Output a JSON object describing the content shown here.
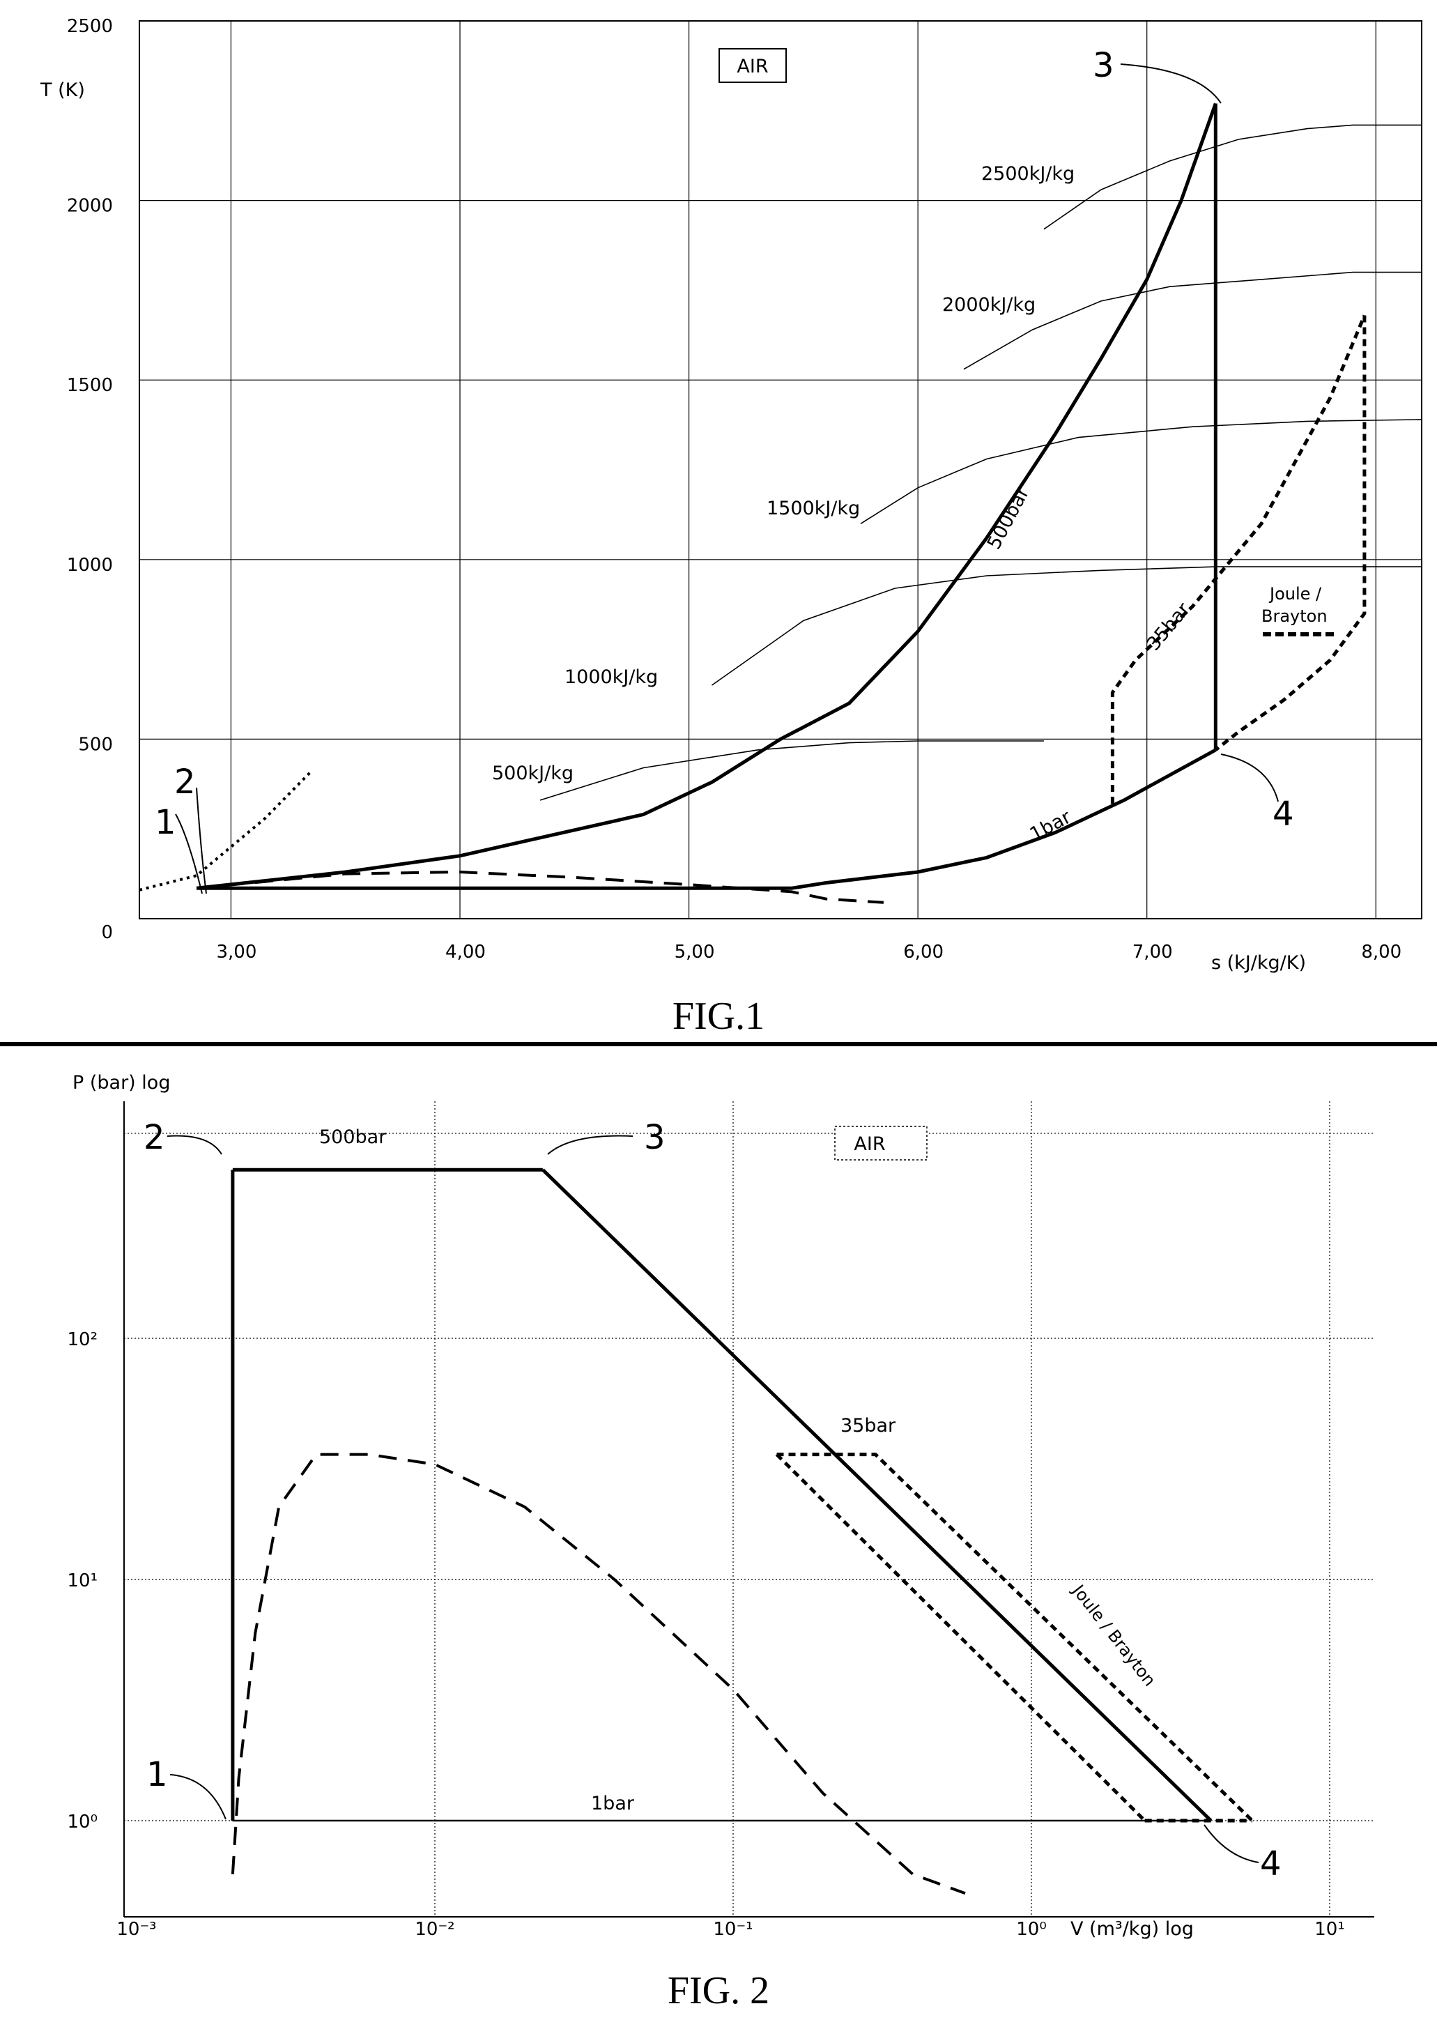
{
  "chart_data": [
    {
      "type": "line",
      "caption": "FIG.1",
      "xlabel": "s (kJ/kg/K)",
      "ylabel": "T (K)",
      "xlim": [
        2.6,
        8.2
      ],
      "ylim": [
        0,
        2500
      ],
      "xticks": [
        "3,00",
        "4,00",
        "5,00",
        "6,00",
        "7,00",
        "8,00"
      ],
      "yticks": [
        "0",
        "500",
        "1000",
        "1500",
        "2000",
        "2500"
      ],
      "grid": true,
      "box_label": "AIR",
      "series": [
        {
          "name": "500bar",
          "style": "solid-bold",
          "x": [
            2.85,
            3.5,
            4.0,
            4.8,
            5.1,
            5.4,
            5.7,
            6.0,
            6.3,
            6.6,
            6.8,
            7.0,
            7.15,
            7.3
          ],
          "y": [
            85,
            130,
            175,
            290,
            380,
            500,
            600,
            800,
            1060,
            1350,
            1560,
            1780,
            2000,
            2270
          ]
        },
        {
          "name": "1bar",
          "style": "solid-bold",
          "x": [
            2.85,
            5.45,
            5.6,
            6.0,
            6.3,
            6.6,
            6.9,
            7.1,
            7.3
          ],
          "y": [
            85,
            85,
            100,
            130,
            170,
            240,
            330,
            400,
            470
          ]
        },
        {
          "name": "",
          "style": "solid-bold",
          "x": [
            7.3,
            7.3
          ],
          "y": [
            2270,
            470
          ]
        },
        {
          "name": "",
          "style": "dashed",
          "x": [
            2.85,
            3.5,
            4.0,
            4.5,
            5.0,
            5.45,
            5.6,
            5.85
          ],
          "y": [
            85,
            125,
            130,
            115,
            95,
            75,
            55,
            45
          ]
        },
        {
          "name": "",
          "style": "dotted",
          "x": [
            2.6,
            2.85,
            3.0,
            3.15,
            3.35
          ],
          "y": [
            80,
            120,
            200,
            280,
            410
          ]
        },
        {
          "name": "35bar",
          "style": "short-dash",
          "x": [
            6.85,
            6.85,
            6.95,
            7.2,
            7.5,
            7.8,
            7.95
          ],
          "y": [
            320,
            630,
            720,
            870,
            1100,
            1450,
            1680
          ]
        },
        {
          "name": "",
          "style": "short-dash",
          "x": [
            7.95,
            7.95,
            7.8,
            7.6,
            7.4,
            7.3
          ],
          "y": [
            1680,
            850,
            720,
            610,
            520,
            470
          ]
        }
      ],
      "isoenergy_lines": [
        {
          "label": "500kJ/kg",
          "x": [
            4.35,
            4.8,
            5.3,
            5.7,
            6.0,
            6.55
          ],
          "y": [
            330,
            420,
            470,
            490,
            495,
            495
          ]
        },
        {
          "label": "1000kJ/kg",
          "x": [
            5.1,
            5.5,
            5.9,
            6.3,
            6.8,
            7.3,
            8.2
          ],
          "y": [
            650,
            830,
            920,
            955,
            970,
            980,
            980
          ]
        },
        {
          "label": "1500kJ/kg",
          "x": [
            5.75,
            6.0,
            6.3,
            6.7,
            7.2,
            7.7,
            8.2
          ],
          "y": [
            1100,
            1200,
            1280,
            1340,
            1370,
            1385,
            1390
          ]
        },
        {
          "label": "2000kJ/kg",
          "x": [
            6.2,
            6.5,
            6.8,
            7.1,
            7.5,
            7.9,
            8.2
          ],
          "y": [
            1530,
            1640,
            1720,
            1760,
            1780,
            1800,
            1800
          ]
        },
        {
          "label": "2500kJ/kg",
          "x": [
            6.55,
            6.8,
            7.1,
            7.4,
            7.7,
            7.9,
            8.2
          ],
          "y": [
            1920,
            2030,
            2110,
            2170,
            2200,
            2210,
            2210
          ]
        }
      ],
      "annotations": [
        "500bar",
        "35bar",
        "1bar",
        "Joule /",
        "Brayton"
      ],
      "points": [
        "1",
        "2",
        "3",
        "4"
      ]
    },
    {
      "type": "line",
      "caption": "FIG. 2",
      "xlabel": "V (m³/kg) log",
      "ylabel": "P (bar) log",
      "xscale": "log",
      "yscale": "log",
      "xticks": [
        "10⁻³",
        "10⁻²",
        "10⁻¹",
        "10⁰",
        "10¹"
      ],
      "yticks": [
        "10⁰",
        "10¹",
        "10²"
      ],
      "grid": true,
      "box_label": "AIR",
      "series": [
        {
          "name": "500bar",
          "style": "solid-bold",
          "x": [
            0.0021,
            0.023
          ],
          "y": [
            500,
            500
          ]
        },
        {
          "name": "",
          "style": "solid-bold",
          "x": [
            0.023,
            4.0
          ],
          "y": [
            500,
            1.0
          ]
        },
        {
          "name": "1bar",
          "style": "solid",
          "x": [
            0.0021,
            4.0
          ],
          "y": [
            1.0,
            1.0
          ]
        },
        {
          "name": "",
          "style": "solid-bold",
          "x": [
            0.0021,
            0.0021
          ],
          "y": [
            1.0,
            500
          ]
        },
        {
          "name": "",
          "style": "dashed",
          "x": [
            0.0021,
            0.0022,
            0.0025,
            0.003,
            0.004,
            0.006,
            0.01,
            0.02,
            0.04,
            0.1,
            0.2,
            0.4,
            0.6
          ],
          "y": [
            0.6,
            1.5,
            6,
            20,
            33,
            33,
            30,
            20,
            10,
            3.5,
            1.3,
            0.6,
            0.5
          ]
        },
        {
          "name": "35bar",
          "style": "short-dash",
          "x": [
            0.14,
            0.3,
            5.5
          ],
          "y": [
            33,
            33,
            1.0
          ]
        },
        {
          "name": "",
          "style": "short-dash",
          "x": [
            0.14,
            2.4
          ],
          "y": [
            33,
            1.0
          ]
        },
        {
          "name": "",
          "style": "short-dash",
          "x": [
            2.4,
            5.5
          ],
          "y": [
            1.0,
            1.0
          ]
        }
      ],
      "annotations": [
        "500bar",
        "35bar",
        "1bar",
        "Joule / Brayton"
      ],
      "points": [
        "1",
        "2",
        "3",
        "4"
      ]
    }
  ]
}
